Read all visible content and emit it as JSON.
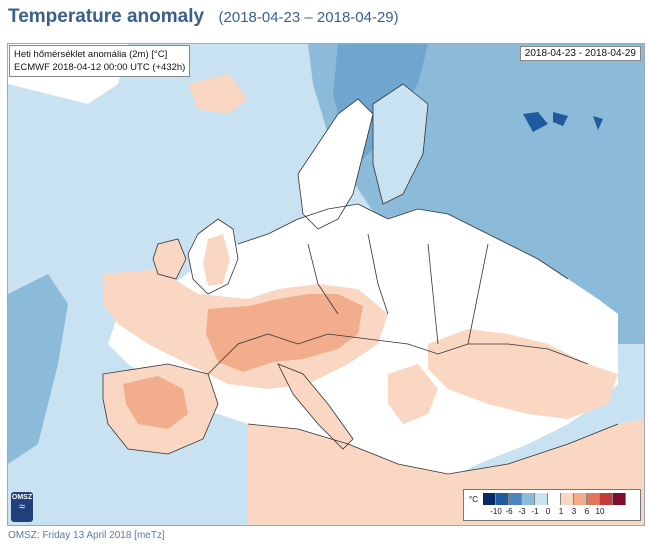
{
  "header": {
    "title": "Temperature anomaly",
    "subtitle": "(2018-04-23 – 2018-04-29)"
  },
  "map": {
    "info_line1": "Heti hőmérséklet anomália (2m) [°C]",
    "info_line2": "ECMWF 2018-04-12 00:00 UTC (+432h)",
    "date_range": "2018-04-23 - 2018-04-29",
    "logo_text": "OMSZ",
    "logo_symbol": "wave-logo-icon"
  },
  "legend": {
    "unit": "°C",
    "colors": [
      "#0a2a66",
      "#1f5a9e",
      "#4b86c0",
      "#8cbad9",
      "#c9e2f1",
      "#ffffff",
      "#fad7c2",
      "#f2ae8c",
      "#e3765b",
      "#c13c3a",
      "#7e0f2c"
    ],
    "ticks": [
      "-10",
      "-6",
      "-3",
      "-1",
      "0",
      "1",
      "3",
      "6",
      "10"
    ]
  },
  "footer": {
    "text": "OMSZ: Friday 13 April 2018  [meTz]"
  }
}
